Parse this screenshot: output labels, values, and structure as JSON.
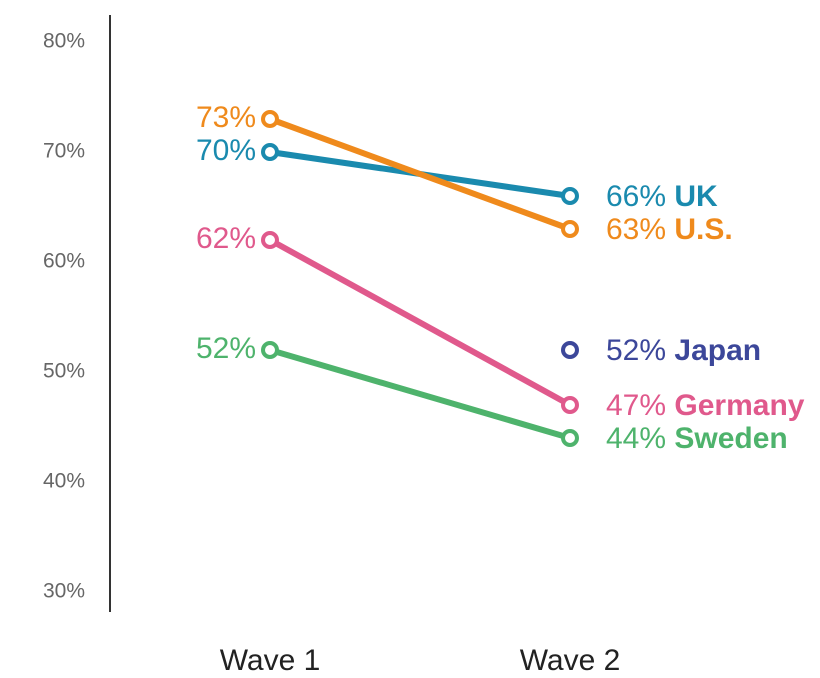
{
  "chart_data": {
    "type": "line",
    "categories": [
      "Wave 1",
      "Wave 2"
    ],
    "ylim": [
      30,
      80
    ],
    "yticks": [
      {
        "value": 30,
        "label": "30%"
      },
      {
        "value": 40,
        "label": "40%"
      },
      {
        "value": 50,
        "label": "50%"
      },
      {
        "value": 60,
        "label": "60%"
      },
      {
        "value": 70,
        "label": "70%"
      },
      {
        "value": 80,
        "label": "80%"
      }
    ],
    "series": [
      {
        "name": "UK",
        "color": "#1a8aae",
        "values": [
          70,
          66
        ],
        "value_labels": [
          "70%",
          "66%"
        ]
      },
      {
        "name": "U.S.",
        "color": "#ef8a1c",
        "values": [
          73,
          63
        ],
        "value_labels": [
          "73%",
          "63%"
        ]
      },
      {
        "name": "Japan",
        "color": "#3c479a",
        "values": [
          null,
          52
        ],
        "value_labels": [
          null,
          "52%"
        ]
      },
      {
        "name": "Germany",
        "color": "#e0598c",
        "values": [
          62,
          47
        ],
        "value_labels": [
          "62%",
          "47%"
        ]
      },
      {
        "name": "Sweden",
        "color": "#4eb36c",
        "values": [
          52,
          44
        ],
        "value_labels": [
          "52%",
          "44%"
        ]
      }
    ]
  }
}
